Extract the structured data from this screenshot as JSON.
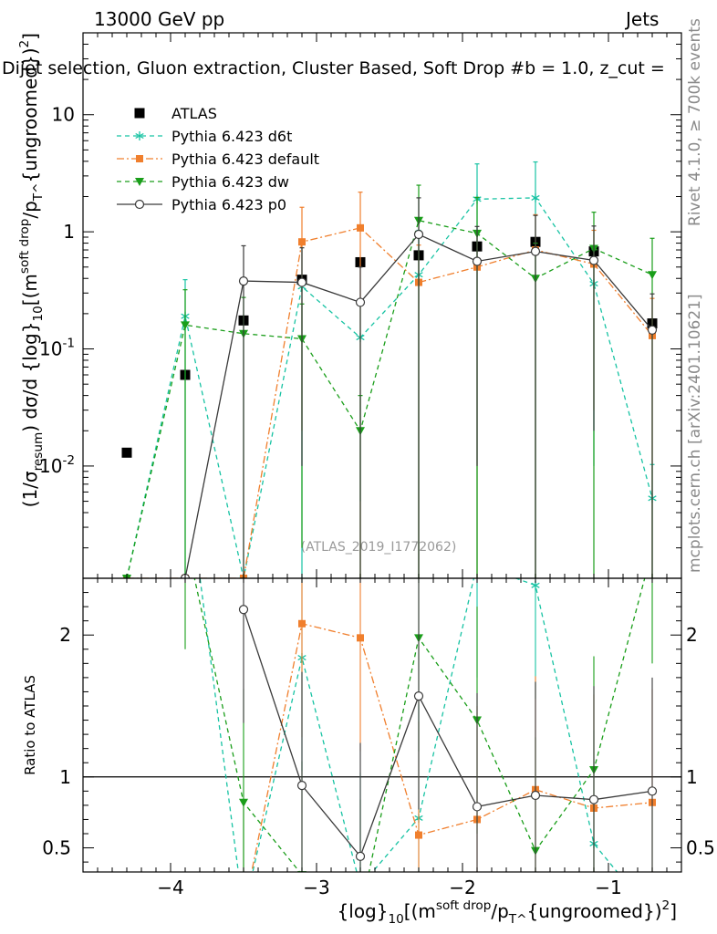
{
  "header": {
    "left": "13000 GeV pp",
    "right": "Jets",
    "subtitle": "Dijet selection, Gluon extraction, Cluster Based, Soft Drop #b = 1.0, z_cut ="
  },
  "side_labels": {
    "rivet": "Rivet 4.1.0, ≥ 700k events",
    "mcplots": "mcplots.cern.ch [arXiv:2401.10621]"
  },
  "colors": {
    "atlas": "#000000",
    "d6t": "#17c3a3",
    "default": "#f07f2d",
    "dw": "#1a9e1a",
    "p0": "#3a3a3a"
  },
  "chart_data": [
    {
      "type": "line",
      "panel": "main",
      "xlabel": "{log}_10[(m^{soft drop}/p_T^{ungroomed})^2]",
      "ylabel": "(1/σ_{resum}) dσ/d {log}_10[(m^{soft drop}/p_T^{ungroomed})^2]",
      "ylog": true,
      "xlim": [
        -4.6,
        -0.5
      ],
      "ylim": [
        0.0011,
        50
      ],
      "x_ticks": [
        -4,
        -3,
        -2,
        -1
      ],
      "x_tick_labels": [
        "−4",
        "−3",
        "−2",
        "−1"
      ],
      "y_ticks": [
        0.01,
        0.1,
        1,
        10
      ],
      "y_tick_labels": [
        "10^{-2}",
        "10^{-1}",
        "1",
        "10"
      ],
      "watermark": "(ATLAS_2019_I1772062)",
      "legend_position": "top-left",
      "series": [
        {
          "name": "ATLAS",
          "key": "atlas",
          "style": "data",
          "marker": "square",
          "x": [
            -4.3,
            -3.9,
            -3.5,
            -3.1,
            -2.7,
            -2.3,
            -1.9,
            -1.5,
            -1.1,
            -0.7
          ],
          "y": [
            0.013,
            0.06,
            0.175,
            0.39,
            0.55,
            0.63,
            0.75,
            0.82,
            0.68,
            0.165
          ]
        },
        {
          "name": "Pythia 6.423 d6t",
          "key": "d6t",
          "style": "dash",
          "marker": "star",
          "x": [
            -4.3,
            -3.9,
            -3.5,
            -3.1,
            -2.7,
            -2.3,
            -1.9,
            -1.5,
            -1.1,
            -0.7
          ],
          "y": [
            0.0011,
            0.19,
            0.0011,
            0.34,
            0.125,
            0.43,
            1.9,
            1.95,
            0.36,
            0.0053
          ],
          "err": [
            0,
            0.2,
            0,
            0.5,
            0.12,
            0.6,
            1.9,
            2.0,
            0.35,
            0.005
          ]
        },
        {
          "name": "Pythia 6.423 default",
          "key": "default",
          "style": "dashdot",
          "marker": "square-small",
          "x": [
            -4.3,
            -3.9,
            -3.5,
            -3.1,
            -2.7,
            -2.3,
            -1.9,
            -1.5,
            -1.1,
            -0.7
          ],
          "y": [
            0.0011,
            0.0011,
            0.0011,
            0.82,
            1.08,
            0.37,
            0.5,
            0.7,
            0.53,
            0.13
          ],
          "err": [
            0,
            0,
            0,
            0.8,
            1.1,
            0.4,
            0.5,
            0.7,
            0.5,
            0.14
          ]
        },
        {
          "name": "Pythia 6.423 dw",
          "key": "dw",
          "style": "dash",
          "marker": "triangle-down",
          "x": [
            -4.3,
            -3.9,
            -3.5,
            -3.1,
            -2.7,
            -2.3,
            -1.9,
            -1.5,
            -1.1,
            -0.7
          ],
          "y": [
            0.0011,
            0.16,
            0.135,
            0.122,
            0.02,
            1.25,
            0.97,
            0.4,
            0.72,
            0.43
          ],
          "err": [
            0,
            0.16,
            0.14,
            0.12,
            0.02,
            1.25,
            1.0,
            0.4,
            0.75,
            0.45
          ]
        },
        {
          "name": "Pythia 6.423 p0",
          "key": "p0",
          "style": "solid",
          "marker": "circle-open",
          "x": [
            -3.9,
            -3.5,
            -3.1,
            -2.7,
            -2.3,
            -1.9,
            -1.5,
            -1.1,
            -0.7
          ],
          "y": [
            0.0011,
            0.38,
            0.37,
            0.25,
            0.95,
            0.56,
            0.68,
            0.57,
            0.145
          ],
          "err": [
            0,
            0.38,
            0.36,
            0.25,
            1.0,
            0.55,
            0.7,
            0.55,
            0.15
          ]
        }
      ]
    },
    {
      "type": "line",
      "panel": "ratio",
      "ylabel": "Ratio to ATLAS",
      "xlim": [
        -4.6,
        -0.5
      ],
      "ylim": [
        0.33,
        2.4
      ],
      "y_ticks": [
        0.5,
        1,
        2
      ],
      "y_tick_labels": [
        "0.5",
        "1",
        "2"
      ],
      "reference_line": 1,
      "series": [
        {
          "key": "d6t",
          "marker": "star",
          "x": [
            -3.9,
            -3.5,
            -3.1,
            -2.7,
            -2.3,
            -1.9,
            -1.5,
            -1.1,
            -0.7
          ],
          "y": [
            3.2,
            0.05,
            1.84,
            0.23,
            0.71,
            2.5,
            2.35,
            0.53,
            0.03
          ]
        },
        {
          "key": "default",
          "marker": "square-small",
          "x": [
            -3.5,
            -3.1,
            -2.7,
            -2.3,
            -1.9,
            -1.5,
            -1.1,
            -0.7
          ],
          "y": [
            0.05,
            2.08,
            1.98,
            0.59,
            0.7,
            0.91,
            0.78,
            0.82
          ]
        },
        {
          "key": "dw",
          "marker": "triangle-down",
          "x": [
            -3.9,
            -3.5,
            -3.1,
            -2.7,
            -2.3,
            -1.9,
            -1.5,
            -1.1,
            -0.7
          ],
          "y": [
            2.7,
            0.82,
            0.31,
            0.04,
            1.98,
            1.4,
            0.48,
            1.05,
            2.6
          ]
        },
        {
          "key": "p0",
          "marker": "circle-open",
          "x": [
            -3.5,
            -3.1,
            -2.7,
            -2.3,
            -1.9,
            -1.5,
            -1.1,
            -0.7
          ],
          "y": [
            2.18,
            0.94,
            0.44,
            1.57,
            0.79,
            0.87,
            0.84,
            0.9
          ]
        }
      ]
    }
  ]
}
